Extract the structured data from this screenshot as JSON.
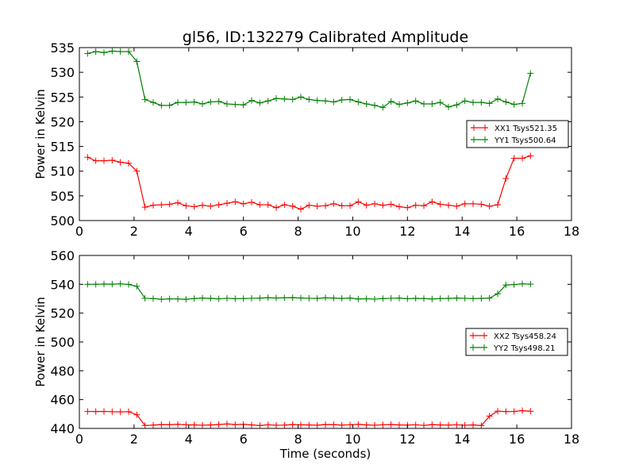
{
  "figure_title": "gl56, ID:132279 Calibrated Amplitude",
  "colors": {
    "XX": "#ff0000",
    "YY": "#008000"
  },
  "chart_data": [
    {
      "type": "line",
      "title": "gl56, ID:132279 Calibrated Amplitude",
      "xlabel": "",
      "ylabel": "Power in Kelvin",
      "xlim": [
        0,
        18
      ],
      "ylim": [
        500,
        535
      ],
      "xticks": [
        0,
        2,
        4,
        6,
        8,
        10,
        12,
        14,
        16,
        18
      ],
      "yticks": [
        500,
        505,
        510,
        515,
        520,
        525,
        530,
        535
      ],
      "grid": false,
      "legend_position": "center-right",
      "marker": "+",
      "x": [
        0.3,
        0.6,
        0.9,
        1.2,
        1.5,
        1.8,
        2.1,
        2.4,
        2.7,
        3.0,
        3.3,
        3.6,
        3.9,
        4.2,
        4.5,
        4.8,
        5.1,
        5.4,
        5.7,
        6.0,
        6.3,
        6.6,
        6.9,
        7.2,
        7.5,
        7.8,
        8.1,
        8.4,
        8.7,
        9.0,
        9.3,
        9.6,
        9.9,
        10.2,
        10.5,
        10.8,
        11.1,
        11.4,
        11.7,
        12.0,
        12.3,
        12.6,
        12.9,
        13.2,
        13.5,
        13.8,
        14.1,
        14.4,
        14.7,
        15.0,
        15.3,
        15.6,
        15.9,
        16.2,
        16.5
      ],
      "series": [
        {
          "name": "XX1 Tsys521.35",
          "color": "#ff0000",
          "values": [
            512.8,
            512.1,
            512.1,
            512.2,
            511.8,
            511.6,
            510.0,
            502.7,
            503.1,
            503.2,
            503.3,
            503.6,
            503.0,
            502.8,
            503.1,
            502.9,
            503.2,
            503.5,
            503.8,
            503.4,
            503.7,
            503.2,
            503.2,
            502.6,
            503.2,
            502.9,
            502.3,
            503.1,
            502.9,
            503.0,
            503.4,
            503.0,
            503.0,
            503.8,
            503.1,
            503.4,
            503.1,
            503.3,
            502.8,
            502.6,
            503.1,
            503.0,
            503.8,
            503.3,
            503.1,
            502.9,
            503.4,
            503.4,
            503.3,
            502.9,
            503.2,
            508.5,
            512.6,
            512.6,
            513.1
          ]
        },
        {
          "name": "YY1 Tsys500.64",
          "color": "#008000",
          "values": [
            533.8,
            534.2,
            534.0,
            534.3,
            534.2,
            534.2,
            532.2,
            524.5,
            523.9,
            523.3,
            523.3,
            523.9,
            523.9,
            524.0,
            523.6,
            524.0,
            524.1,
            523.6,
            523.5,
            523.4,
            524.3,
            523.8,
            524.2,
            524.7,
            524.6,
            524.5,
            525.0,
            524.5,
            524.3,
            524.2,
            524.0,
            524.4,
            524.5,
            524.0,
            523.6,
            523.3,
            522.9,
            524.1,
            523.5,
            523.8,
            524.2,
            523.6,
            523.6,
            523.9,
            523.0,
            523.4,
            524.2,
            523.9,
            523.9,
            523.7,
            524.6,
            524.0,
            523.5,
            523.7,
            529.8
          ]
        }
      ]
    },
    {
      "type": "line",
      "title": "",
      "xlabel": "Time (seconds)",
      "ylabel": "Power in Kelvin",
      "xlim": [
        0,
        18
      ],
      "ylim": [
        440,
        560
      ],
      "xticks": [
        0,
        2,
        4,
        6,
        8,
        10,
        12,
        14,
        16,
        18
      ],
      "yticks": [
        440,
        460,
        480,
        500,
        520,
        540,
        560
      ],
      "grid": false,
      "legend_position": "center-right",
      "marker": "+",
      "x": [
        0.3,
        0.6,
        0.9,
        1.2,
        1.5,
        1.8,
        2.1,
        2.4,
        2.7,
        3.0,
        3.3,
        3.6,
        3.9,
        4.2,
        4.5,
        4.8,
        5.1,
        5.4,
        5.7,
        6.0,
        6.3,
        6.6,
        6.9,
        7.2,
        7.5,
        7.8,
        8.1,
        8.4,
        8.7,
        9.0,
        9.3,
        9.6,
        9.9,
        10.2,
        10.5,
        10.8,
        11.1,
        11.4,
        11.7,
        12.0,
        12.3,
        12.6,
        12.9,
        13.2,
        13.5,
        13.8,
        14.1,
        14.4,
        14.7,
        15.0,
        15.3,
        15.6,
        15.9,
        16.2,
        16.5
      ],
      "series": [
        {
          "name": "XX2 Tsys458.24",
          "color": "#ff0000",
          "values": [
            451.8,
            451.7,
            451.8,
            451.6,
            451.5,
            451.6,
            449.5,
            442.0,
            442.3,
            442.7,
            442.6,
            442.8,
            442.5,
            442.4,
            442.2,
            442.4,
            442.7,
            443.1,
            442.6,
            442.8,
            442.4,
            442.0,
            442.5,
            442.2,
            442.3,
            442.7,
            442.5,
            442.4,
            442.2,
            442.7,
            442.6,
            442.3,
            442.5,
            442.8,
            442.4,
            442.2,
            442.5,
            442.7,
            442.4,
            442.3,
            442.5,
            442.1,
            442.6,
            442.4,
            442.3,
            442.5,
            442.2,
            442.4,
            442.0,
            448.5,
            452.0,
            451.7,
            451.8,
            452.3,
            451.9
          ]
        },
        {
          "name": "YY2 Tsys498.21",
          "color": "#008000",
          "values": [
            540.0,
            540.0,
            540.2,
            540.1,
            540.3,
            539.9,
            538.6,
            530.3,
            530.1,
            529.6,
            529.9,
            529.8,
            529.6,
            530.1,
            530.4,
            530.2,
            529.9,
            530.3,
            530.0,
            530.1,
            530.3,
            530.4,
            530.7,
            530.5,
            530.6,
            530.7,
            530.5,
            530.3,
            530.2,
            530.6,
            530.4,
            530.2,
            530.4,
            529.8,
            530.0,
            529.7,
            530.1,
            530.3,
            530.4,
            530.0,
            530.2,
            530.1,
            529.8,
            530.1,
            530.2,
            530.4,
            530.3,
            530.1,
            530.2,
            530.4,
            533.4,
            539.5,
            539.8,
            540.3,
            540.1
          ]
        }
      ]
    }
  ]
}
